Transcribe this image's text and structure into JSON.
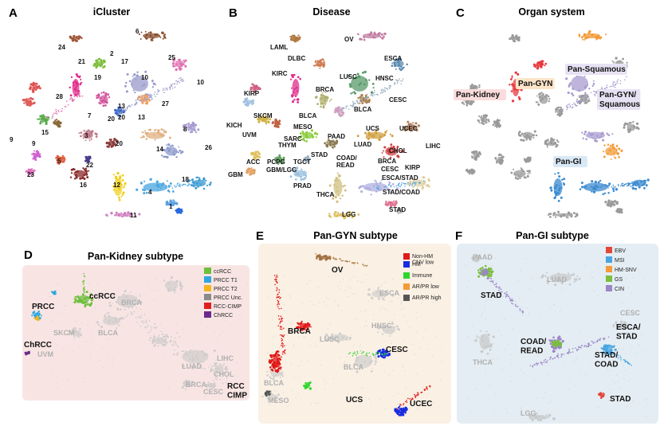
{
  "panels": {
    "A": {
      "letter": "A",
      "title": "iCluster"
    },
    "B": {
      "letter": "B",
      "title": "Disease"
    },
    "C": {
      "letter": "C",
      "title": "Organ system"
    },
    "D": {
      "letter": "D",
      "title": "Pan-Kidney subtype"
    },
    "E": {
      "letter": "E",
      "title": "Pan-GYN subtype"
    },
    "F": {
      "letter": "F",
      "title": "Pan-GI subtype"
    }
  },
  "chart_data": [
    {
      "type": "scatter",
      "title": "iCluster",
      "cluster_labels": [
        "6",
        "24",
        "21",
        "2",
        "17",
        "25",
        "19",
        "10",
        "10",
        "28",
        "13",
        "20",
        "27",
        "7",
        "20",
        "13",
        "8",
        "15",
        "3",
        "9",
        "9",
        "5",
        "20",
        "14",
        "26",
        "22",
        "23",
        "16",
        "12",
        "4",
        "18",
        "1",
        "11"
      ]
    },
    {
      "type": "scatter",
      "title": "Disease",
      "cluster_labels": [
        "OV",
        "LAML",
        "DLBC",
        "ESCA",
        "KIRC",
        "LUSC",
        "HNSC",
        "KIRP",
        "BRCA",
        "CESC",
        "BLCA",
        "SKCM",
        "BLCA",
        "KICH",
        "MESO",
        "UCS",
        "UCEC",
        "UVM",
        "SARC",
        "PAAD",
        "THYM",
        "LUAD",
        "CHOL",
        "LIHC",
        "ACC",
        "PCPG",
        "STAD",
        "TGCT",
        "BRCA",
        "GBM",
        "GBM/LGG",
        "CESC",
        "KIRP",
        "COAD/ READ",
        "ESCA/STAD",
        "PRAD",
        "THCA",
        "STAD/COAD",
        "STAD",
        "LGG"
      ]
    },
    {
      "type": "scatter",
      "title": "Organ system",
      "highlight_labels": [
        "Pan-Kidney",
        "Pan-GYN",
        "Pan-Squamous",
        "Pan-GYN/ Squamous",
        "Pan-GI"
      ],
      "colors": {
        "Pan-Kidney": "#e8383d",
        "Pan-GYN": "#f39a35",
        "Pan-Squamous": "#a89bd0",
        "Pan-GYN/Squamous": "#a89bd0",
        "Pan-GI": "#3a8ad0"
      }
    },
    {
      "type": "scatter",
      "title": "Pan-Kidney subtype",
      "legend": [
        {
          "label": "ccRCC",
          "color": "#6dbf3c"
        },
        {
          "label": "PRCC T1",
          "color": "#2ea7e0"
        },
        {
          "label": "PRCC T2",
          "color": "#f2b51d"
        },
        {
          "label": "PRCC Unc.",
          "color": "#8a8a8a"
        },
        {
          "label": "RCC-CIMP",
          "color": "#e02020"
        },
        {
          "label": "ChRCC",
          "color": "#6a2a8a"
        }
      ],
      "cluster_labels": [
        "ccRCC",
        "PRCC",
        "ChRCC",
        "RCC CIMP"
      ],
      "background_labels": [
        "BRCA",
        "SKCM",
        "BLCA",
        "UVM",
        "LUAD",
        "LIHC",
        "CHOL",
        "BRCA",
        "CESC"
      ]
    },
    {
      "type": "scatter",
      "title": "Pan-GYN subtype",
      "legend": [
        {
          "label": "Non-HM CNV low",
          "color": "#e01818"
        },
        {
          "label": "HM",
          "color": "#1a2be0"
        },
        {
          "label": "Immune",
          "color": "#2ed62e"
        },
        {
          "label": "AR/PR low",
          "color": "#f39a35"
        },
        {
          "label": "AR/PR high",
          "color": "#555555"
        }
      ],
      "cluster_labels": [
        "OV",
        "BRCA",
        "CESC",
        "UCS",
        "UCEC"
      ],
      "background_labels": [
        "ESCA",
        "HNSC",
        "LUSC",
        "BLCA",
        "BLCA",
        "MESO"
      ]
    },
    {
      "type": "scatter",
      "title": "Pan-GI subtype",
      "legend": [
        {
          "label": "EBV",
          "color": "#e2473a"
        },
        {
          "label": "MSI",
          "color": "#4aa6e0"
        },
        {
          "label": "HM-SNV",
          "color": "#f29b3a"
        },
        {
          "label": "GS",
          "color": "#7bbf3c"
        },
        {
          "label": "CIN",
          "color": "#9a86c8"
        }
      ],
      "cluster_labels": [
        "STAD",
        "COAD/ READ",
        "ESCA/ STAD",
        "STAD/ COAD",
        "STAD"
      ],
      "background_labels": [
        "PAAD",
        "LUAD",
        "CESC",
        "THCA",
        "LGG"
      ]
    }
  ]
}
